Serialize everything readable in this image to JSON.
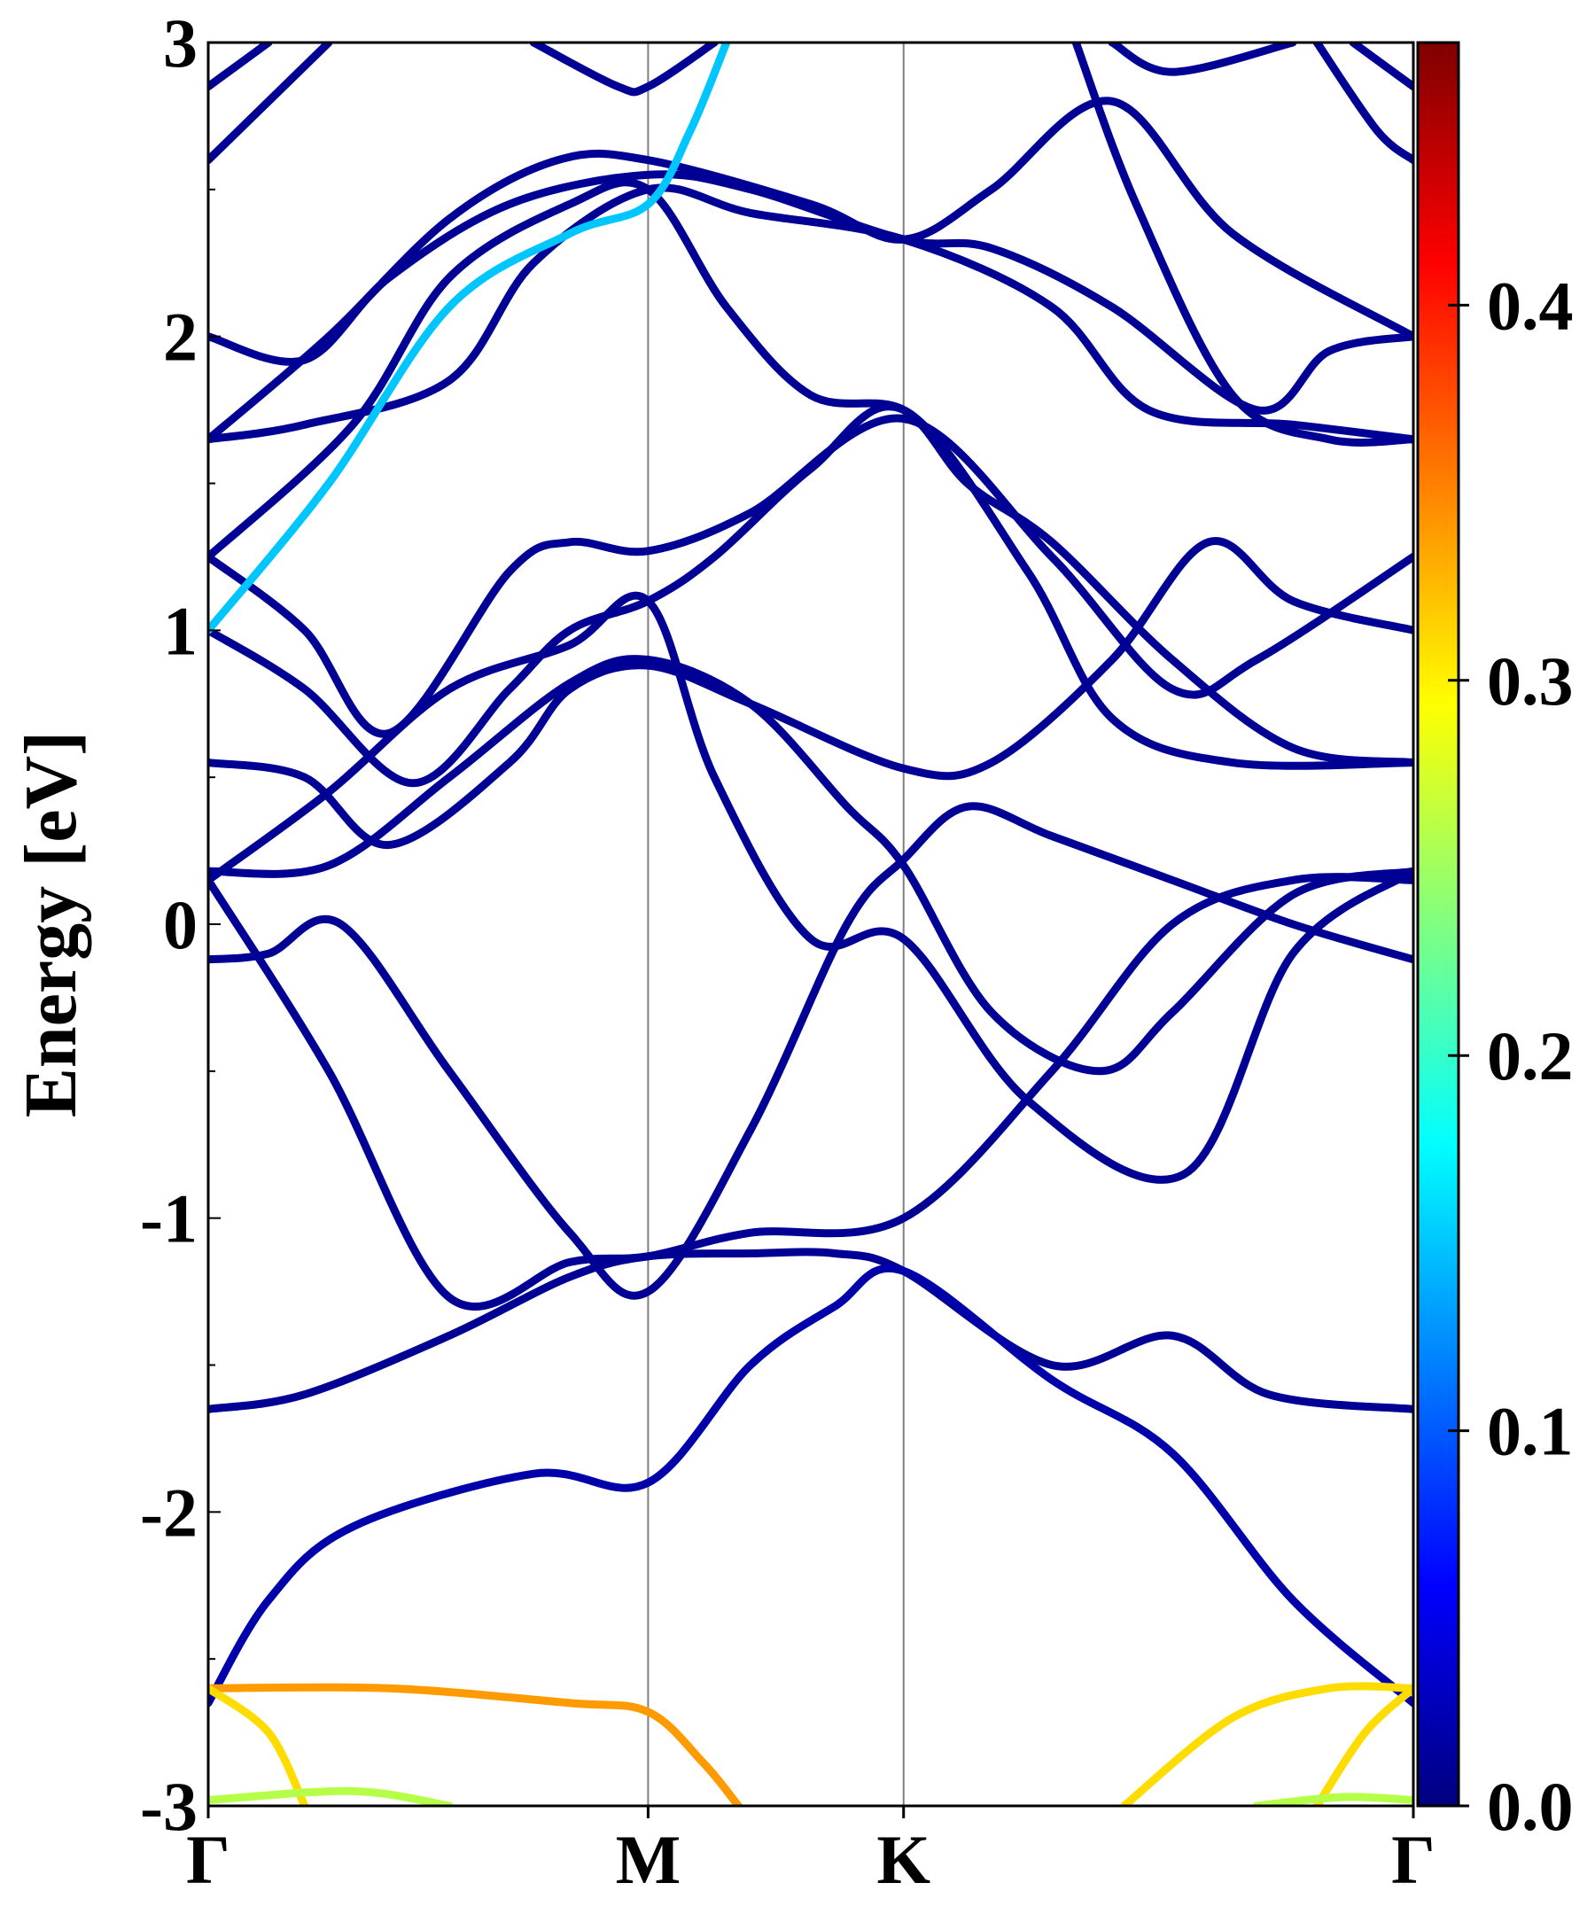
{
  "chart_data": {
    "type": "line",
    "title": "",
    "xlabel": "",
    "ylabel": "Energy [eV]",
    "ylim": [
      -3,
      3
    ],
    "yticks": [
      "-3",
      "-2",
      "-1",
      "0",
      "1",
      "2",
      "3"
    ],
    "kpoints": [
      {
        "label": "Γ",
        "x": 0
      },
      {
        "label": "M",
        "x": 0.365
      },
      {
        "label": "K",
        "x": 0.577
      },
      {
        "label": "Γ",
        "x": 1
      }
    ],
    "grid": "vertical lines at high-symmetry points",
    "colorbar": {
      "range": [
        0,
        0.47
      ],
      "ticks": [
        "0.0",
        "0.1",
        "0.2",
        "0.3",
        "0.4"
      ],
      "colormap": "jet"
    },
    "bands": [
      {
        "w": 0.01,
        "pts": [
          [
            0,
            -0.12
          ],
          [
            0.05,
            -0.1
          ],
          [
            0.11,
            0.0
          ],
          [
            0.2,
            -0.5
          ],
          [
            0.3,
            -1.05
          ],
          [
            0.365,
            -1.25
          ],
          [
            0.45,
            -0.7
          ],
          [
            0.53,
            0.0
          ],
          [
            0.577,
            0.22
          ],
          [
            0.63,
            0.4
          ],
          [
            0.7,
            0.3
          ],
          [
            0.8,
            0.15
          ],
          [
            0.9,
            0.0
          ],
          [
            1,
            -0.12
          ]
        ]
      },
      {
        "w": 0.01,
        "pts": [
          [
            0,
            0.18
          ],
          [
            0.1,
            0.2
          ],
          [
            0.2,
            0.5
          ],
          [
            0.3,
            0.82
          ],
          [
            0.365,
            0.9
          ],
          [
            0.45,
            0.75
          ],
          [
            0.53,
            0.4
          ],
          [
            0.577,
            0.2
          ],
          [
            0.65,
            -0.3
          ],
          [
            0.74,
            -0.5
          ],
          [
            0.8,
            -0.3
          ],
          [
            0.9,
            0.1
          ],
          [
            1,
            0.18
          ]
        ]
      },
      {
        "w": 0.01,
        "pts": [
          [
            0,
            0.15
          ],
          [
            0.1,
            0.45
          ],
          [
            0.2,
            0.8
          ],
          [
            0.3,
            0.95
          ],
          [
            0.365,
            1.1
          ],
          [
            0.42,
            0.5
          ],
          [
            0.5,
            -0.05
          ],
          [
            0.577,
            -0.05
          ],
          [
            0.68,
            -0.6
          ],
          [
            0.81,
            -0.85
          ],
          [
            0.9,
            -0.1
          ],
          [
            1,
            0.18
          ]
        ]
      },
      {
        "w": 0.01,
        "pts": [
          [
            0,
            -1.65
          ],
          [
            0.08,
            -1.6
          ],
          [
            0.2,
            -1.4
          ],
          [
            0.3,
            -1.2
          ],
          [
            0.365,
            -1.13
          ],
          [
            0.45,
            -1.12
          ],
          [
            0.52,
            -1.12
          ],
          [
            0.577,
            -1.18
          ],
          [
            0.7,
            -1.5
          ],
          [
            0.8,
            -1.4
          ],
          [
            0.88,
            -1.6
          ],
          [
            1,
            -1.65
          ]
        ]
      },
      {
        "w": 0.01,
        "pts": [
          [
            0,
            0.15
          ],
          [
            0.1,
            -0.5
          ],
          [
            0.2,
            -1.27
          ],
          [
            0.3,
            -1.15
          ],
          [
            0.365,
            -1.13
          ],
          [
            0.45,
            -1.05
          ],
          [
            0.577,
            -1.0
          ],
          [
            0.7,
            -0.5
          ],
          [
            0.8,
            0.0
          ],
          [
            0.9,
            0.15
          ],
          [
            1,
            0.15
          ]
        ]
      },
      {
        "w": 0.02,
        "pts": [
          [
            0,
            -2.65
          ],
          [
            0.05,
            -2.3
          ],
          [
            0.12,
            -2.05
          ],
          [
            0.27,
            -1.87
          ],
          [
            0.365,
            -1.9
          ],
          [
            0.45,
            -1.5
          ],
          [
            0.52,
            -1.3
          ],
          [
            0.577,
            -1.18
          ],
          [
            0.7,
            -1.55
          ],
          [
            0.8,
            -1.8
          ],
          [
            0.9,
            -2.3
          ],
          [
            1,
            -2.65
          ]
        ]
      },
      {
        "w": 0.34,
        "pts": [
          [
            0,
            -2.6
          ],
          [
            0.15,
            -2.6
          ],
          [
            0.3,
            -2.65
          ],
          [
            0.365,
            -2.68
          ],
          [
            0.41,
            -2.85
          ],
          [
            0.44,
            -3.0
          ]
        ]
      },
      {
        "w": 0.31,
        "pts": [
          [
            0,
            -2.6
          ],
          [
            0.05,
            -2.75
          ],
          [
            0.08,
            -3.0
          ]
        ]
      },
      {
        "w": 0.31,
        "pts": [
          [
            0.76,
            -3.0
          ],
          [
            0.85,
            -2.7
          ],
          [
            0.93,
            -2.6
          ],
          [
            1,
            -2.6
          ]
        ]
      },
      {
        "w": 0.31,
        "pts": [
          [
            0.92,
            -3.0
          ],
          [
            0.96,
            -2.75
          ],
          [
            1,
            -2.6
          ]
        ]
      },
      {
        "w": 0.26,
        "pts": [
          [
            0,
            -2.98
          ],
          [
            0.12,
            -2.95
          ],
          [
            0.2,
            -3.0
          ]
        ]
      },
      {
        "w": 0.26,
        "pts": [
          [
            0.87,
            -3.0
          ],
          [
            0.94,
            -2.97
          ],
          [
            1,
            -2.98
          ]
        ]
      },
      {
        "w": 0.01,
        "pts": [
          [
            0,
            0.55
          ],
          [
            0.08,
            0.5
          ],
          [
            0.15,
            0.27
          ],
          [
            0.25,
            0.55
          ],
          [
            0.3,
            0.8
          ],
          [
            0.365,
            0.88
          ],
          [
            0.45,
            0.75
          ],
          [
            0.577,
            0.53
          ],
          [
            0.65,
            0.55
          ],
          [
            0.75,
            0.9
          ],
          [
            0.83,
            1.3
          ],
          [
            0.9,
            1.1
          ],
          [
            1,
            1.0
          ]
        ]
      },
      {
        "w": 0.01,
        "pts": [
          [
            0,
            1.0
          ],
          [
            0.08,
            0.8
          ],
          [
            0.17,
            0.48
          ],
          [
            0.25,
            0.8
          ],
          [
            0.3,
            1.0
          ],
          [
            0.365,
            1.1
          ],
          [
            0.42,
            1.25
          ],
          [
            0.5,
            1.55
          ],
          [
            0.577,
            1.75
          ],
          [
            0.68,
            1.2
          ],
          [
            0.75,
            0.7
          ],
          [
            0.85,
            0.55
          ],
          [
            1,
            0.55
          ]
        ]
      },
      {
        "w": 0.01,
        "pts": [
          [
            0,
            1.25
          ],
          [
            0.08,
            1.0
          ],
          [
            0.15,
            0.65
          ],
          [
            0.25,
            1.2
          ],
          [
            0.3,
            1.3
          ],
          [
            0.365,
            1.27
          ],
          [
            0.45,
            1.4
          ],
          [
            0.577,
            1.72
          ],
          [
            0.7,
            1.25
          ],
          [
            0.8,
            0.8
          ],
          [
            0.87,
            0.9
          ],
          [
            1,
            1.25
          ]
        ]
      },
      {
        "w": 0.01,
        "pts": [
          [
            0,
            1.65
          ],
          [
            0.08,
            1.7
          ],
          [
            0.2,
            1.85
          ],
          [
            0.27,
            2.25
          ],
          [
            0.365,
            2.5
          ],
          [
            0.45,
            2.42
          ],
          [
            0.577,
            2.33
          ],
          [
            0.7,
            2.1
          ],
          [
            0.78,
            1.75
          ],
          [
            0.9,
            1.7
          ],
          [
            1,
            1.65
          ]
        ]
      },
      {
        "w": 0.01,
        "pts": [
          [
            0,
            2.0
          ],
          [
            0.08,
            1.92
          ],
          [
            0.15,
            2.2
          ],
          [
            0.25,
            2.45
          ],
          [
            0.365,
            2.55
          ],
          [
            0.45,
            2.5
          ],
          [
            0.577,
            2.33
          ],
          [
            0.65,
            2.3
          ],
          [
            0.75,
            2.1
          ],
          [
            0.87,
            1.75
          ],
          [
            0.93,
            1.95
          ],
          [
            1,
            2.0
          ]
        ]
      },
      {
        "w": 0.01,
        "pts": [
          [
            0,
            1.65
          ],
          [
            0.1,
            2.0
          ],
          [
            0.2,
            2.4
          ],
          [
            0.29,
            2.6
          ],
          [
            0.365,
            2.6
          ],
          [
            0.5,
            2.45
          ],
          [
            0.577,
            2.33
          ],
          [
            0.65,
            2.5
          ],
          [
            0.75,
            2.8
          ],
          [
            0.85,
            2.35
          ],
          [
            1,
            2.0
          ]
        ]
      },
      {
        "w": 0.01,
        "pts": [
          [
            0,
            1.25
          ],
          [
            0.12,
            1.7
          ],
          [
            0.2,
            2.2
          ],
          [
            0.3,
            2.45
          ],
          [
            0.365,
            2.5
          ],
          [
            0.43,
            2.1
          ],
          [
            0.5,
            1.8
          ],
          [
            0.577,
            1.75
          ],
          [
            0.63,
            1.5
          ],
          [
            0.7,
            1.3
          ],
          [
            0.8,
            0.9
          ],
          [
            0.9,
            0.6
          ],
          [
            1,
            0.55
          ]
        ]
      },
      {
        "w": 0.15,
        "pts": [
          [
            0,
            1.0
          ],
          [
            0.1,
            1.5
          ],
          [
            0.2,
            2.1
          ],
          [
            0.3,
            2.35
          ],
          [
            0.365,
            2.45
          ],
          [
            0.4,
            2.7
          ],
          [
            0.43,
            3.0
          ]
        ]
      },
      {
        "w": 0.01,
        "pts": [
          [
            0,
            2.85
          ],
          [
            0.05,
            3.0
          ]
        ]
      },
      {
        "w": 0.01,
        "pts": [
          [
            0,
            2.6
          ],
          [
            0.1,
            3.0
          ]
        ]
      },
      {
        "w": 0.01,
        "pts": [
          [
            0.27,
            3.0
          ],
          [
            0.34,
            2.85
          ],
          [
            0.365,
            2.85
          ],
          [
            0.42,
            3.0
          ]
        ]
      },
      {
        "w": 0.01,
        "pts": [
          [
            0.72,
            3.0
          ],
          [
            0.77,
            2.45
          ],
          [
            0.85,
            1.8
          ],
          [
            0.93,
            1.65
          ],
          [
            1,
            1.65
          ]
        ]
      },
      {
        "w": 0.01,
        "pts": [
          [
            0.75,
            3.0
          ],
          [
            0.8,
            2.9
          ],
          [
            0.9,
            3.0
          ]
        ]
      },
      {
        "w": 0.01,
        "pts": [
          [
            0.92,
            3.0
          ],
          [
            0.97,
            2.7
          ],
          [
            1,
            2.6
          ]
        ]
      },
      {
        "w": 0.01,
        "pts": [
          [
            0.95,
            3.0
          ],
          [
            1,
            2.85
          ]
        ]
      }
    ]
  }
}
